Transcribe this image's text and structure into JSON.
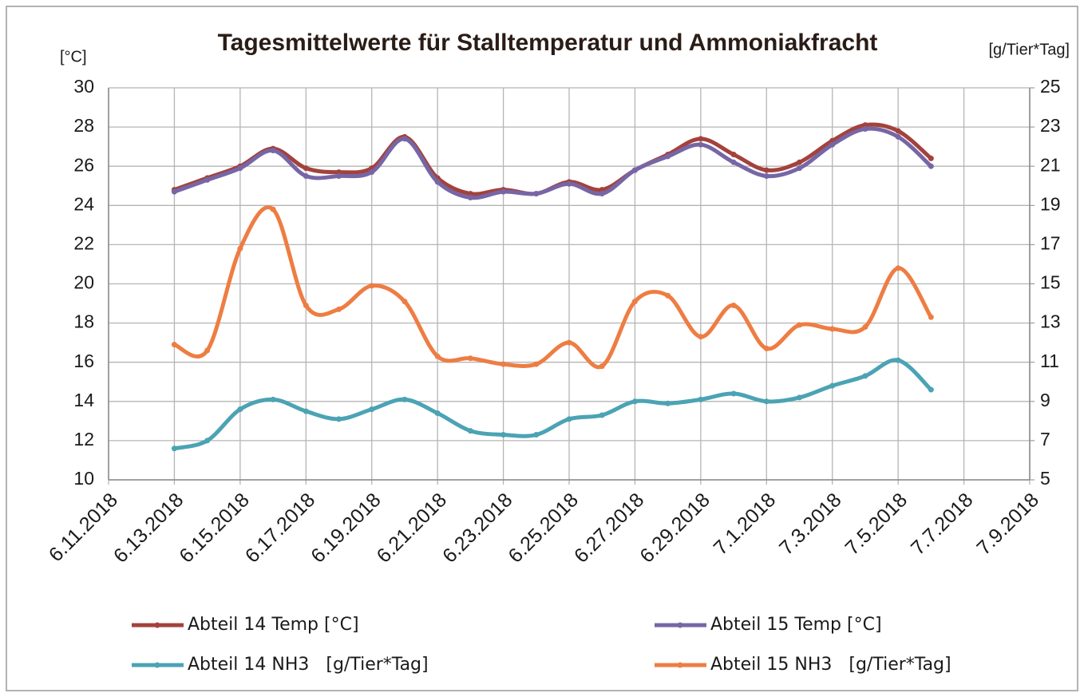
{
  "chart_data": {
    "type": "line",
    "title": "Tagesmittelwerte für Stalltemperatur und Ammoniakfracht",
    "y_label": "[°C]",
    "y2_label": "[g/Tier*Tag]",
    "x": [
      "2018-06-13",
      "2018-06-14",
      "2018-06-15",
      "2018-06-16",
      "2018-06-17",
      "2018-06-18",
      "2018-06-19",
      "2018-06-20",
      "2018-06-21",
      "2018-06-22",
      "2018-06-23",
      "2018-06-24",
      "2018-06-25",
      "2018-06-26",
      "2018-06-27",
      "2018-06-28",
      "2018-06-29",
      "2018-06-30",
      "2018-07-01",
      "2018-07-02",
      "2018-07-03",
      "2018-07-04",
      "2018-07-05",
      "2018-07-06"
    ],
    "series": [
      {
        "name": "Abteil 14 Temp [°C]",
        "color": "#a3423c",
        "values": [
          24.8,
          25.4,
          26.0,
          26.9,
          25.9,
          25.7,
          25.9,
          27.5,
          25.4,
          24.6,
          24.8,
          24.6,
          25.2,
          24.8,
          25.8,
          26.6,
          27.4,
          26.6,
          25.8,
          26.2,
          27.3,
          28.1,
          27.8,
          26.4
        ]
      },
      {
        "name": "Abteil 15 Temp [°C]",
        "color": "#7766a6",
        "values": [
          24.7,
          25.3,
          25.9,
          26.8,
          25.5,
          25.5,
          25.7,
          27.4,
          25.2,
          24.4,
          24.7,
          24.6,
          25.1,
          24.6,
          25.8,
          26.5,
          27.1,
          26.2,
          25.5,
          25.9,
          27.1,
          27.9,
          27.5,
          26.0
        ]
      },
      {
        "name": "Abteil 14 NH3   [g/Tier*Tag]",
        "color": "#4ba3b4",
        "axis": "y2",
        "values": [
          6.6,
          7.0,
          8.6,
          9.1,
          8.5,
          8.1,
          8.6,
          9.1,
          8.4,
          7.5,
          7.3,
          7.3,
          8.1,
          8.3,
          9.0,
          8.9,
          9.1,
          9.4,
          9.0,
          9.2,
          9.8,
          10.3,
          11.1,
          9.6
        ]
      },
      {
        "name": "Abteil 15 NH3   [g/Tier*Tag]",
        "color": "#ee7d43",
        "axis": "y2",
        "values": [
          11.9,
          11.6,
          16.8,
          18.8,
          13.9,
          13.7,
          14.9,
          14.1,
          11.3,
          11.2,
          10.9,
          10.9,
          12.0,
          10.8,
          14.1,
          14.4,
          12.3,
          13.9,
          11.7,
          12.9,
          12.7,
          12.8,
          15.8,
          13.3
        ]
      }
    ],
    "xlim": [
      "2018-06-11",
      "2018-07-09"
    ],
    "xticks": [
      {
        "value": "2018-06-11",
        "label": "6.11.2018"
      },
      {
        "value": "2018-06-13",
        "label": "6.13.2018"
      },
      {
        "value": "2018-06-15",
        "label": "6.15.2018"
      },
      {
        "value": "2018-06-17",
        "label": "6.17.2018"
      },
      {
        "value": "2018-06-19",
        "label": "6.19.2018"
      },
      {
        "value": "2018-06-21",
        "label": "6.21.2018"
      },
      {
        "value": "2018-06-23",
        "label": "6.23.2018"
      },
      {
        "value": "2018-06-25",
        "label": "6.25.2018"
      },
      {
        "value": "2018-06-27",
        "label": "6.27.2018"
      },
      {
        "value": "2018-06-29",
        "label": "6.29.2018"
      },
      {
        "value": "2018-07-01",
        "label": "7.1.2018"
      },
      {
        "value": "2018-07-03",
        "label": "7.3.2018"
      },
      {
        "value": "2018-07-05",
        "label": "7.5.2018"
      },
      {
        "value": "2018-07-07",
        "label": "7.7.2018"
      },
      {
        "value": "2018-07-09",
        "label": "7.9.2018"
      }
    ],
    "ylim": [
      10,
      30
    ],
    "yticks": [
      10,
      12,
      14,
      16,
      18,
      20,
      22,
      24,
      26,
      28,
      30
    ],
    "y2lim": [
      5,
      25
    ],
    "y2ticks": [
      5,
      7,
      9,
      11,
      13,
      15,
      17,
      19,
      21,
      23,
      25
    ],
    "grid": true,
    "smooth": true,
    "legend": "bottom"
  }
}
